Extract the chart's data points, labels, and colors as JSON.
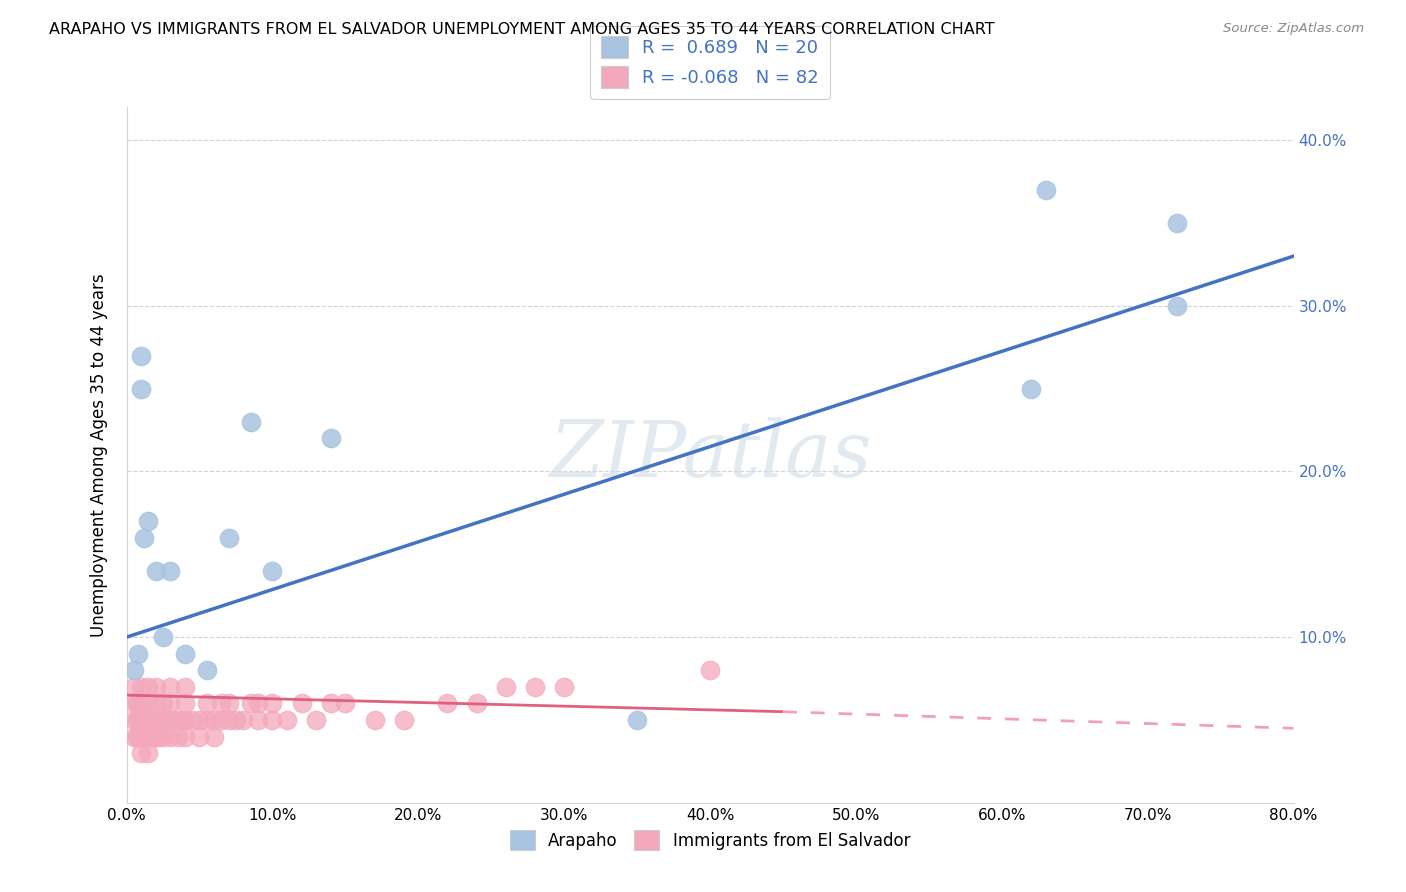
{
  "title": "ARAPAHO VS IMMIGRANTS FROM EL SALVADOR UNEMPLOYMENT AMONG AGES 35 TO 44 YEARS CORRELATION CHART",
  "source": "Source: ZipAtlas.com",
  "ylabel": "Unemployment Among Ages 35 to 44 years",
  "r_blue": 0.689,
  "n_blue": 20,
  "r_pink": -0.068,
  "n_pink": 82,
  "blue_dot_color": "#a8c4e0",
  "pink_dot_color": "#f4a8bc",
  "blue_line_color": "#4472c4",
  "pink_line_color": "#e06080",
  "pink_line_dash_color": "#f0a0b8",
  "watermark": "ZIPatlas",
  "xlim": [
    0.0,
    0.8
  ],
  "ylim": [
    0.0,
    0.42
  ],
  "xticks": [
    0.0,
    0.1,
    0.2,
    0.3,
    0.4,
    0.5,
    0.6,
    0.7,
    0.8
  ],
  "yticks_right": [
    0.1,
    0.2,
    0.3,
    0.4
  ],
  "blue_line_x0": 0.0,
  "blue_line_y0": 0.1,
  "blue_line_x1": 0.8,
  "blue_line_y1": 0.33,
  "pink_line_solid_x0": 0.0,
  "pink_line_solid_y0": 0.065,
  "pink_line_solid_x1": 0.45,
  "pink_line_solid_y1": 0.055,
  "pink_line_dash_x0": 0.45,
  "pink_line_dash_y0": 0.055,
  "pink_line_dash_x1": 0.8,
  "pink_line_dash_y1": 0.045,
  "blue_scatter_x": [
    0.005,
    0.008,
    0.01,
    0.01,
    0.012,
    0.015,
    0.02,
    0.025,
    0.03,
    0.04,
    0.055,
    0.07,
    0.085,
    0.1,
    0.14,
    0.62,
    0.63,
    0.72,
    0.72,
    0.35
  ],
  "blue_scatter_y": [
    0.08,
    0.09,
    0.27,
    0.25,
    0.16,
    0.17,
    0.14,
    0.1,
    0.14,
    0.09,
    0.08,
    0.16,
    0.23,
    0.14,
    0.22,
    0.25,
    0.37,
    0.3,
    0.35,
    0.05
  ],
  "pink_scatter_x": [
    0.005,
    0.005,
    0.005,
    0.005,
    0.007,
    0.007,
    0.007,
    0.008,
    0.008,
    0.008,
    0.009,
    0.009,
    0.01,
    0.01,
    0.01,
    0.01,
    0.01,
    0.012,
    0.012,
    0.012,
    0.013,
    0.013,
    0.015,
    0.015,
    0.015,
    0.015,
    0.015,
    0.018,
    0.018,
    0.02,
    0.02,
    0.02,
    0.02,
    0.022,
    0.022,
    0.025,
    0.025,
    0.025,
    0.028,
    0.03,
    0.03,
    0.03,
    0.03,
    0.032,
    0.035,
    0.035,
    0.038,
    0.04,
    0.04,
    0.04,
    0.04,
    0.045,
    0.05,
    0.05,
    0.055,
    0.055,
    0.06,
    0.06,
    0.065,
    0.065,
    0.07,
    0.07,
    0.075,
    0.08,
    0.085,
    0.09,
    0.09,
    0.1,
    0.1,
    0.11,
    0.12,
    0.13,
    0.14,
    0.15,
    0.17,
    0.19,
    0.22,
    0.24,
    0.26,
    0.28,
    0.3,
    0.4
  ],
  "pink_scatter_y": [
    0.04,
    0.05,
    0.06,
    0.07,
    0.04,
    0.05,
    0.06,
    0.04,
    0.05,
    0.06,
    0.04,
    0.05,
    0.03,
    0.04,
    0.05,
    0.06,
    0.07,
    0.04,
    0.05,
    0.06,
    0.04,
    0.05,
    0.03,
    0.04,
    0.05,
    0.06,
    0.07,
    0.04,
    0.05,
    0.04,
    0.05,
    0.06,
    0.07,
    0.04,
    0.05,
    0.04,
    0.05,
    0.06,
    0.05,
    0.04,
    0.05,
    0.06,
    0.07,
    0.05,
    0.04,
    0.05,
    0.05,
    0.04,
    0.05,
    0.06,
    0.07,
    0.05,
    0.04,
    0.05,
    0.05,
    0.06,
    0.04,
    0.05,
    0.05,
    0.06,
    0.05,
    0.06,
    0.05,
    0.05,
    0.06,
    0.05,
    0.06,
    0.05,
    0.06,
    0.05,
    0.06,
    0.05,
    0.06,
    0.06,
    0.05,
    0.05,
    0.06,
    0.06,
    0.07,
    0.07,
    0.07,
    0.08
  ]
}
